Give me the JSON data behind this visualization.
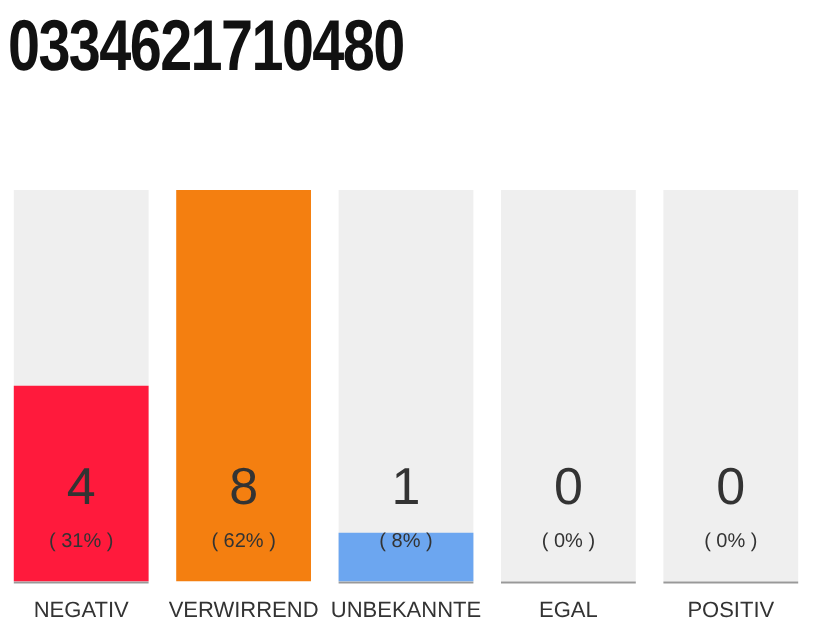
{
  "chart_data": {
    "type": "bar",
    "title": "0334621710480",
    "categories": [
      "NEGATIV",
      "VERWIRREND",
      "UNBEKANNTE",
      "EGAL",
      "POSITIV"
    ],
    "values": [
      4,
      8,
      1,
      0,
      0
    ],
    "colors": [
      "#ff1a3c",
      "#f47f10",
      "#6ca6f0",
      "#6ca6f0",
      "#6ca6f0"
    ],
    "tick_labels": "x",
    "grid": false,
    "legend": false,
    "data_labels": true,
    "bands": [
      {
        "axis": "x",
        "from": "NEGATIV",
        "to": "NEGATIV",
        "color": "#efefef"
      },
      {
        "axis": "x",
        "from": "UNBEKANNTE",
        "to": "UNBEKANNTE",
        "color": "#efefef"
      },
      {
        "axis": "x",
        "from": "EGAL",
        "to": "EGAL",
        "color": "#efefef"
      },
      {
        "axis": "x",
        "from": "POSITIV",
        "to": "POSITIV",
        "color": "#efefef"
      }
    ],
    "annotations": [
      "( 31% )",
      "( 62% )",
      "( 8% )",
      "( 0% )",
      "( 0% )"
    ]
  }
}
